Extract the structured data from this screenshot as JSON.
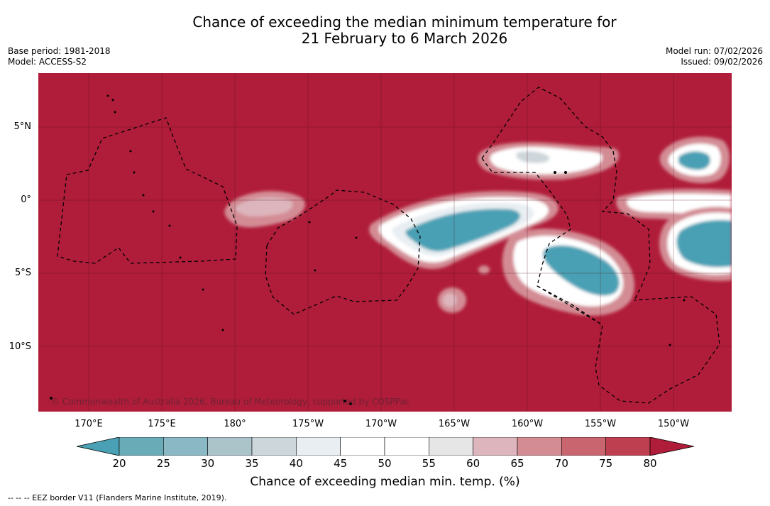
{
  "title": {
    "line1": "Chance of exceeding the median minimum temperature for",
    "line2": "21 February to 6 March 2026"
  },
  "meta": {
    "base_period": "Base period: 1981-2018",
    "model": "Model: ACCESS-S2",
    "model_run": "Model run: 07/02/2026",
    "issued": "Issued: 09/02/2026"
  },
  "map": {
    "lat_labels": [
      "5°N",
      "0°",
      "5°S",
      "10°S"
    ],
    "lon_labels": [
      "170°E",
      "175°E",
      "180°",
      "175°W",
      "170°W",
      "165°W",
      "160°W",
      "155°W",
      "150°W"
    ],
    "copyright": "© Commonwealth of Australia 2026, Bureau of Meteorology, supported by COSPPac",
    "background_color": "#b01d3a"
  },
  "colorbar": {
    "ticks": [
      "20",
      "25",
      "30",
      "35",
      "40",
      "45",
      "50",
      "55",
      "60",
      "65",
      "70",
      "75",
      "80"
    ],
    "colors": [
      "#4aa0b4",
      "#6aabb8",
      "#8ab8c4",
      "#aac4ca",
      "#cdd6da",
      "#e8eef2",
      "#ffffff",
      "#ffffff",
      "#e6e6e6",
      "#ddb5bc",
      "#d38c94",
      "#c9656f",
      "#be3f4f",
      "#b01d3a"
    ],
    "label": "Chance of exceeding median min. temp. (%)"
  },
  "footnote": "--  --  -- EEZ border V11 (Flanders Marine Institute, 2019)."
}
